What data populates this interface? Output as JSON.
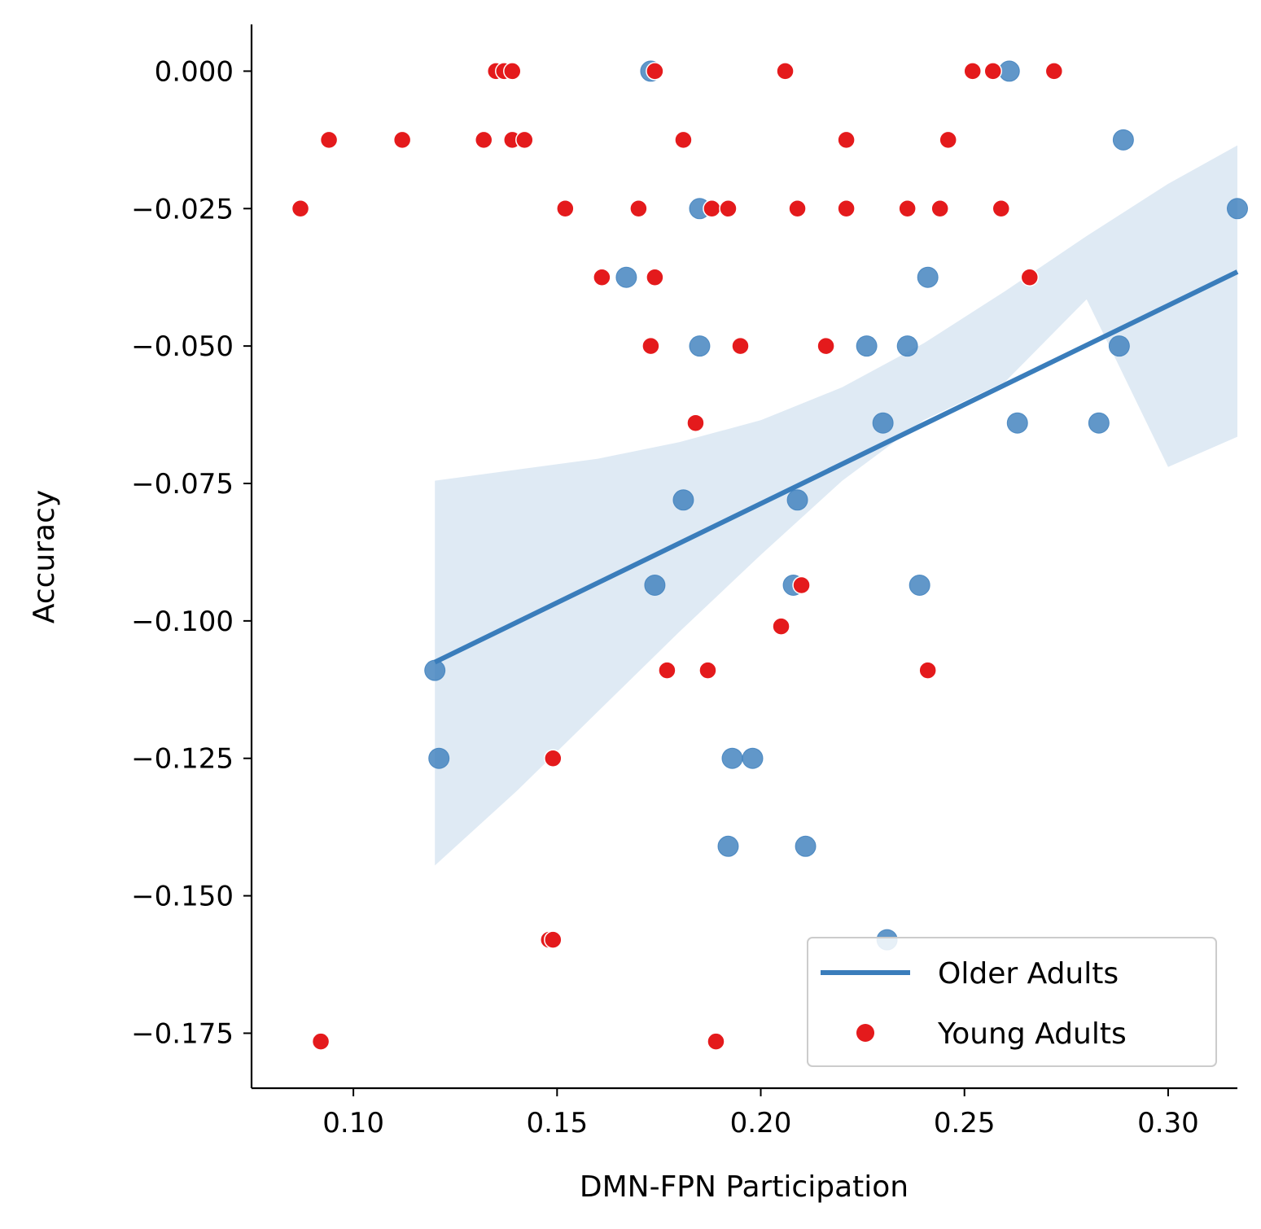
{
  "chart_data": {
    "type": "scatter",
    "title": "",
    "xlabel": "DMN-FPN Participation",
    "ylabel": "Accuracy",
    "xlim": [
      0.075,
      0.317
    ],
    "ylim": [
      -0.185,
      0.0085
    ],
    "xticks": [
      0.1,
      0.15,
      0.2,
      0.25,
      0.3
    ],
    "xtick_labels": [
      "0.10",
      "0.15",
      "0.20",
      "0.25",
      "0.30"
    ],
    "yticks": [
      0.0,
      -0.025,
      -0.05,
      -0.075,
      -0.1,
      -0.125,
      -0.15,
      -0.175
    ],
    "ytick_labels": [
      "0.000",
      "−0.025",
      "−0.050",
      "−0.075",
      "−0.100",
      "−0.125",
      "−0.150",
      "−0.175"
    ],
    "grid": false,
    "legend_position": "bottom-right",
    "series": [
      {
        "name": "Older Adults",
        "kind": "regression",
        "color": "#3a7dbb",
        "line": {
          "x": [
            0.12,
            0.317
          ],
          "y": [
            -0.1075,
            -0.0365
          ]
        },
        "ci_band": {
          "x": [
            0.12,
            0.14,
            0.16,
            0.18,
            0.2,
            0.22,
            0.24,
            0.26,
            0.28,
            0.3,
            0.317
          ],
          "upper": [
            -0.0745,
            -0.0725,
            -0.0705,
            -0.0675,
            -0.0635,
            -0.0575,
            -0.0495,
            -0.04,
            -0.03,
            -0.0205,
            -0.0135
          ],
          "lower": [
            -0.1445,
            -0.131,
            -0.1165,
            -0.102,
            -0.088,
            -0.0745,
            -0.0635,
            -0.0565,
            -0.0415,
            -0.072,
            -0.0665
          ]
        },
        "points": [
          {
            "x": 0.173,
            "y": 0.0
          },
          {
            "x": 0.261,
            "y": 0.0
          },
          {
            "x": 0.289,
            "y": -0.0125
          },
          {
            "x": 0.185,
            "y": -0.025
          },
          {
            "x": 0.317,
            "y": -0.025
          },
          {
            "x": 0.167,
            "y": -0.0375
          },
          {
            "x": 0.241,
            "y": -0.0375
          },
          {
            "x": 0.185,
            "y": -0.05
          },
          {
            "x": 0.226,
            "y": -0.05
          },
          {
            "x": 0.236,
            "y": -0.05
          },
          {
            "x": 0.288,
            "y": -0.05
          },
          {
            "x": 0.23,
            "y": -0.064
          },
          {
            "x": 0.263,
            "y": -0.064
          },
          {
            "x": 0.283,
            "y": -0.064
          },
          {
            "x": 0.181,
            "y": -0.078
          },
          {
            "x": 0.209,
            "y": -0.078
          },
          {
            "x": 0.174,
            "y": -0.0935
          },
          {
            "x": 0.208,
            "y": -0.0935
          },
          {
            "x": 0.239,
            "y": -0.0935
          },
          {
            "x": 0.12,
            "y": -0.109
          },
          {
            "x": 0.121,
            "y": -0.125
          },
          {
            "x": 0.193,
            "y": -0.125
          },
          {
            "x": 0.198,
            "y": -0.125
          },
          {
            "x": 0.192,
            "y": -0.141
          },
          {
            "x": 0.211,
            "y": -0.141
          },
          {
            "x": 0.231,
            "y": -0.158
          }
        ]
      },
      {
        "name": "Young Adults",
        "kind": "scatter",
        "color": "#e41a1c",
        "points": [
          {
            "x": 0.135,
            "y": 0.0
          },
          {
            "x": 0.137,
            "y": 0.0
          },
          {
            "x": 0.139,
            "y": 0.0
          },
          {
            "x": 0.174,
            "y": 0.0
          },
          {
            "x": 0.206,
            "y": 0.0
          },
          {
            "x": 0.252,
            "y": 0.0
          },
          {
            "x": 0.257,
            "y": 0.0
          },
          {
            "x": 0.272,
            "y": 0.0
          },
          {
            "x": 0.094,
            "y": -0.0125
          },
          {
            "x": 0.112,
            "y": -0.0125
          },
          {
            "x": 0.132,
            "y": -0.0125
          },
          {
            "x": 0.139,
            "y": -0.0125
          },
          {
            "x": 0.142,
            "y": -0.0125
          },
          {
            "x": 0.181,
            "y": -0.0125
          },
          {
            "x": 0.221,
            "y": -0.0125
          },
          {
            "x": 0.246,
            "y": -0.0125
          },
          {
            "x": 0.087,
            "y": -0.025
          },
          {
            "x": 0.152,
            "y": -0.025
          },
          {
            "x": 0.17,
            "y": -0.025
          },
          {
            "x": 0.188,
            "y": -0.025
          },
          {
            "x": 0.192,
            "y": -0.025
          },
          {
            "x": 0.209,
            "y": -0.025
          },
          {
            "x": 0.221,
            "y": -0.025
          },
          {
            "x": 0.236,
            "y": -0.025
          },
          {
            "x": 0.244,
            "y": -0.025
          },
          {
            "x": 0.259,
            "y": -0.025
          },
          {
            "x": 0.161,
            "y": -0.0375
          },
          {
            "x": 0.174,
            "y": -0.0375
          },
          {
            "x": 0.266,
            "y": -0.0375
          },
          {
            "x": 0.173,
            "y": -0.05
          },
          {
            "x": 0.195,
            "y": -0.05
          },
          {
            "x": 0.216,
            "y": -0.05
          },
          {
            "x": 0.184,
            "y": -0.064
          },
          {
            "x": 0.21,
            "y": -0.0935
          },
          {
            "x": 0.205,
            "y": -0.101
          },
          {
            "x": 0.177,
            "y": -0.109
          },
          {
            "x": 0.187,
            "y": -0.109
          },
          {
            "x": 0.241,
            "y": -0.109
          },
          {
            "x": 0.149,
            "y": -0.125
          },
          {
            "x": 0.148,
            "y": -0.158
          },
          {
            "x": 0.149,
            "y": -0.158
          },
          {
            "x": 0.092,
            "y": -0.1765
          },
          {
            "x": 0.189,
            "y": -0.1765
          }
        ]
      }
    ],
    "legend": {
      "entries": [
        {
          "label": "Older Adults",
          "marker": "line",
          "color": "#3a7dbb"
        },
        {
          "label": "Young Adults",
          "marker": "dot",
          "color": "#e41a1c"
        }
      ]
    }
  }
}
